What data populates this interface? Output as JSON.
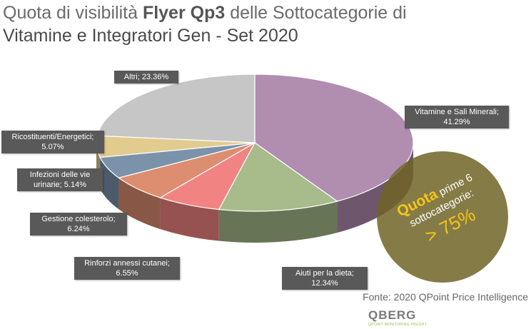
{
  "chart_data": {
    "type": "pie",
    "title": {
      "lead": "Quota di visibilità",
      "highlight": "Flyer Qp3",
      "rest": "delle Sottocategorie di",
      "line2": "Vitamine e Integratori Gen - Set 2020"
    },
    "categories": [
      "Vitamine e Sali Minerali",
      "Aiuti per la dieta",
      "Rinforzi annessi cutanei",
      "Gestione colesterolo",
      "Infezioni delle vie urinarie",
      "Ricostituenti/Energetici",
      "Altri"
    ],
    "values": [
      41.29,
      12.34,
      6.55,
      6.24,
      5.14,
      5.07,
      23.36
    ],
    "value_labels": [
      "41.29%",
      "12.34%",
      "6.55%",
      "6.24%",
      "5.14%",
      "5.07%",
      "23.36%"
    ],
    "label_separator": ";",
    "colors": [
      "#b18db0",
      "#a7bb8b",
      "#f28383",
      "#dd8d70",
      "#7a93aa",
      "#e2cb8f",
      "#c6c6c6"
    ],
    "annotation": {
      "lead": "Quota",
      "text": "prime 6 sottocategorie:",
      "value": "> 75%"
    },
    "source": "Fonte: 2020 QPoint Price Intelligence",
    "logo": {
      "name": "QBERG",
      "tagline": "QPOINT MONITORING INSIGHT"
    }
  }
}
